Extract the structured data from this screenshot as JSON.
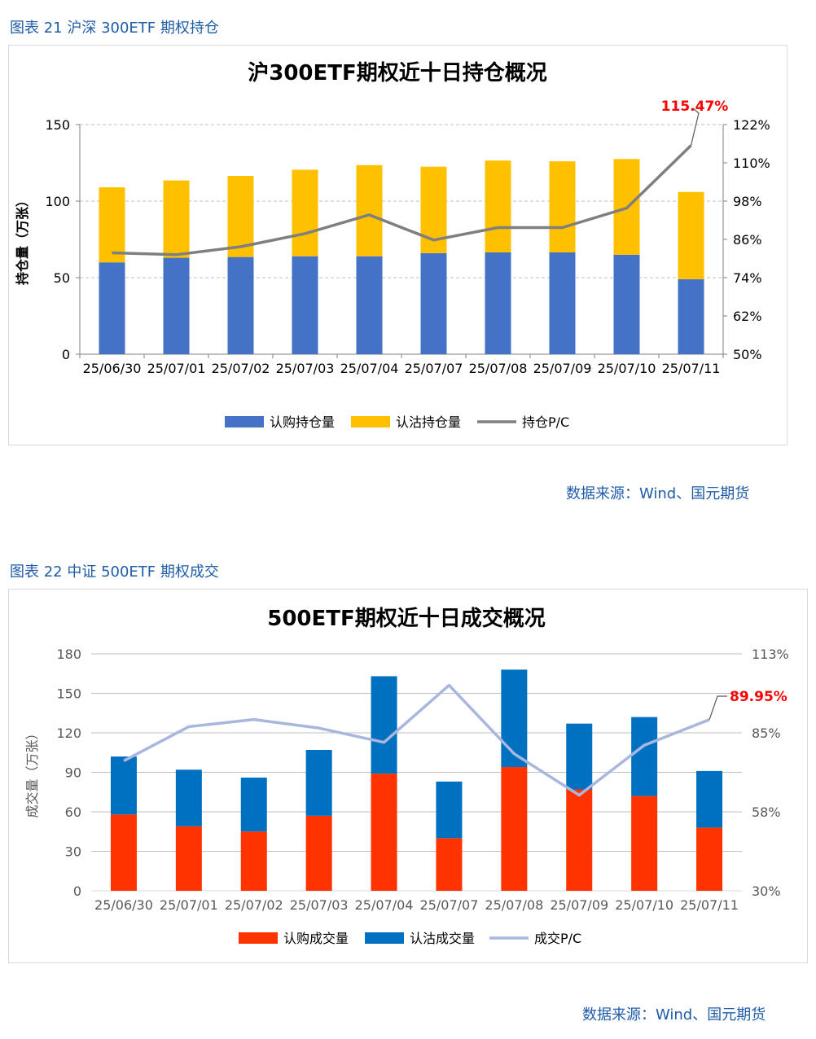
{
  "figure1": {
    "caption": "图表 21  沪深 300ETF 期权持仓",
    "source": "数据来源：Wind、国元期货"
  },
  "figure2": {
    "caption": "图表 22  中证 500ETF 期权成交",
    "source": "数据来源：Wind、国元期货"
  },
  "chart_data": [
    {
      "type": "bar",
      "stacked": true,
      "title": "沪300ETF期权近十日持仓概况",
      "categories": [
        "25/06/30",
        "25/07/01",
        "25/07/02",
        "25/07/03",
        "25/07/04",
        "25/07/07",
        "25/07/08",
        "25/07/09",
        "25/07/10",
        "25/07/11"
      ],
      "series": [
        {
          "name": "认购持仓量",
          "color": "#4472c4",
          "values": [
            60,
            63,
            63.5,
            64,
            64,
            66,
            66.5,
            66.5,
            65,
            49
          ]
        },
        {
          "name": "认沽持仓量",
          "color": "#ffc000",
          "values": [
            49,
            50.5,
            53,
            56.5,
            59.5,
            56.5,
            60,
            59.5,
            62.5,
            57
          ]
        },
        {
          "name": "持仓P/C",
          "color": "#7f7f7f",
          "axis": "right",
          "values": [
            81.8,
            81.2,
            83.7,
            87.8,
            93.7,
            85.8,
            89.7,
            89.7,
            95.8,
            115.47
          ]
        }
      ],
      "ylabel": "持仓量（万张）",
      "ylim": [
        0,
        150
      ],
      "yticks": [
        "0",
        "50",
        "100",
        "150"
      ],
      "y2lim": [
        50,
        122
      ],
      "y2ticks": [
        "50%",
        "62%",
        "74%",
        "86%",
        "98%",
        "110%",
        "122%"
      ],
      "annotation": "115.47%",
      "grid": true,
      "legend": "bottom"
    },
    {
      "type": "bar",
      "stacked": true,
      "title": "500ETF期权近十日成交概况",
      "categories": [
        "25/06/30",
        "25/07/01",
        "25/07/02",
        "25/07/03",
        "25/07/04",
        "25/07/07",
        "25/07/08",
        "25/07/09",
        "25/07/10",
        "25/07/11"
      ],
      "series": [
        {
          "name": "认购成交量",
          "color": "#ff3300",
          "values": [
            58,
            49,
            45,
            57,
            89,
            40,
            94,
            77,
            72,
            48
          ]
        },
        {
          "name": "认沽成交量",
          "color": "#0070c0",
          "values": [
            44,
            43,
            41,
            50,
            74,
            43,
            74,
            50,
            60,
            43
          ]
        },
        {
          "name": "成交P/C",
          "color": "#a9b7df",
          "axis": "right",
          "values": [
            75.5,
            87.5,
            90,
            87,
            82,
            102,
            78,
            63.5,
            81,
            89.95
          ]
        }
      ],
      "ylabel": "成交量（万张）",
      "ylim": [
        0,
        180
      ],
      "yticks": [
        "0",
        "30",
        "60",
        "90",
        "120",
        "150",
        "180"
      ],
      "y2lim": [
        30,
        113
      ],
      "y2ticks": [
        "30%",
        "58%",
        "85%",
        "113%"
      ],
      "annotation": "89.95%",
      "grid": true,
      "legend": "bottom"
    }
  ]
}
